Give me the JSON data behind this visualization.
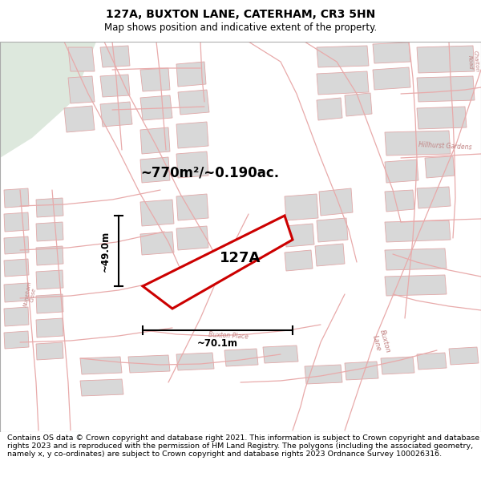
{
  "title": "127A, BUXTON LANE, CATERHAM, CR3 5HN",
  "subtitle": "Map shows position and indicative extent of the property.",
  "area_label": "~770m²/~0.190ac.",
  "property_label": "127A",
  "dim_width": "~70.1m",
  "dim_height": "~49.0m",
  "footer": "Contains OS data © Crown copyright and database right 2021. This information is subject to Crown copyright and database rights 2023 and is reproduced with the permission of HM Land Registry. The polygons (including the associated geometry, namely x, y co-ordinates) are subject to Crown copyright and database rights 2023 Ordnance Survey 100026316.",
  "title_fontsize": 10,
  "subtitle_fontsize": 8.5,
  "footer_fontsize": 6.8,
  "red_color": "#cc0000",
  "map_line_color": "#e8aaaa",
  "block_color": "#d8d8d8",
  "block_edge": "#e0a8a8",
  "map_bg": "#f7f5f5",
  "green_bg": "#ddeedd",
  "white_road": "#ffffff"
}
